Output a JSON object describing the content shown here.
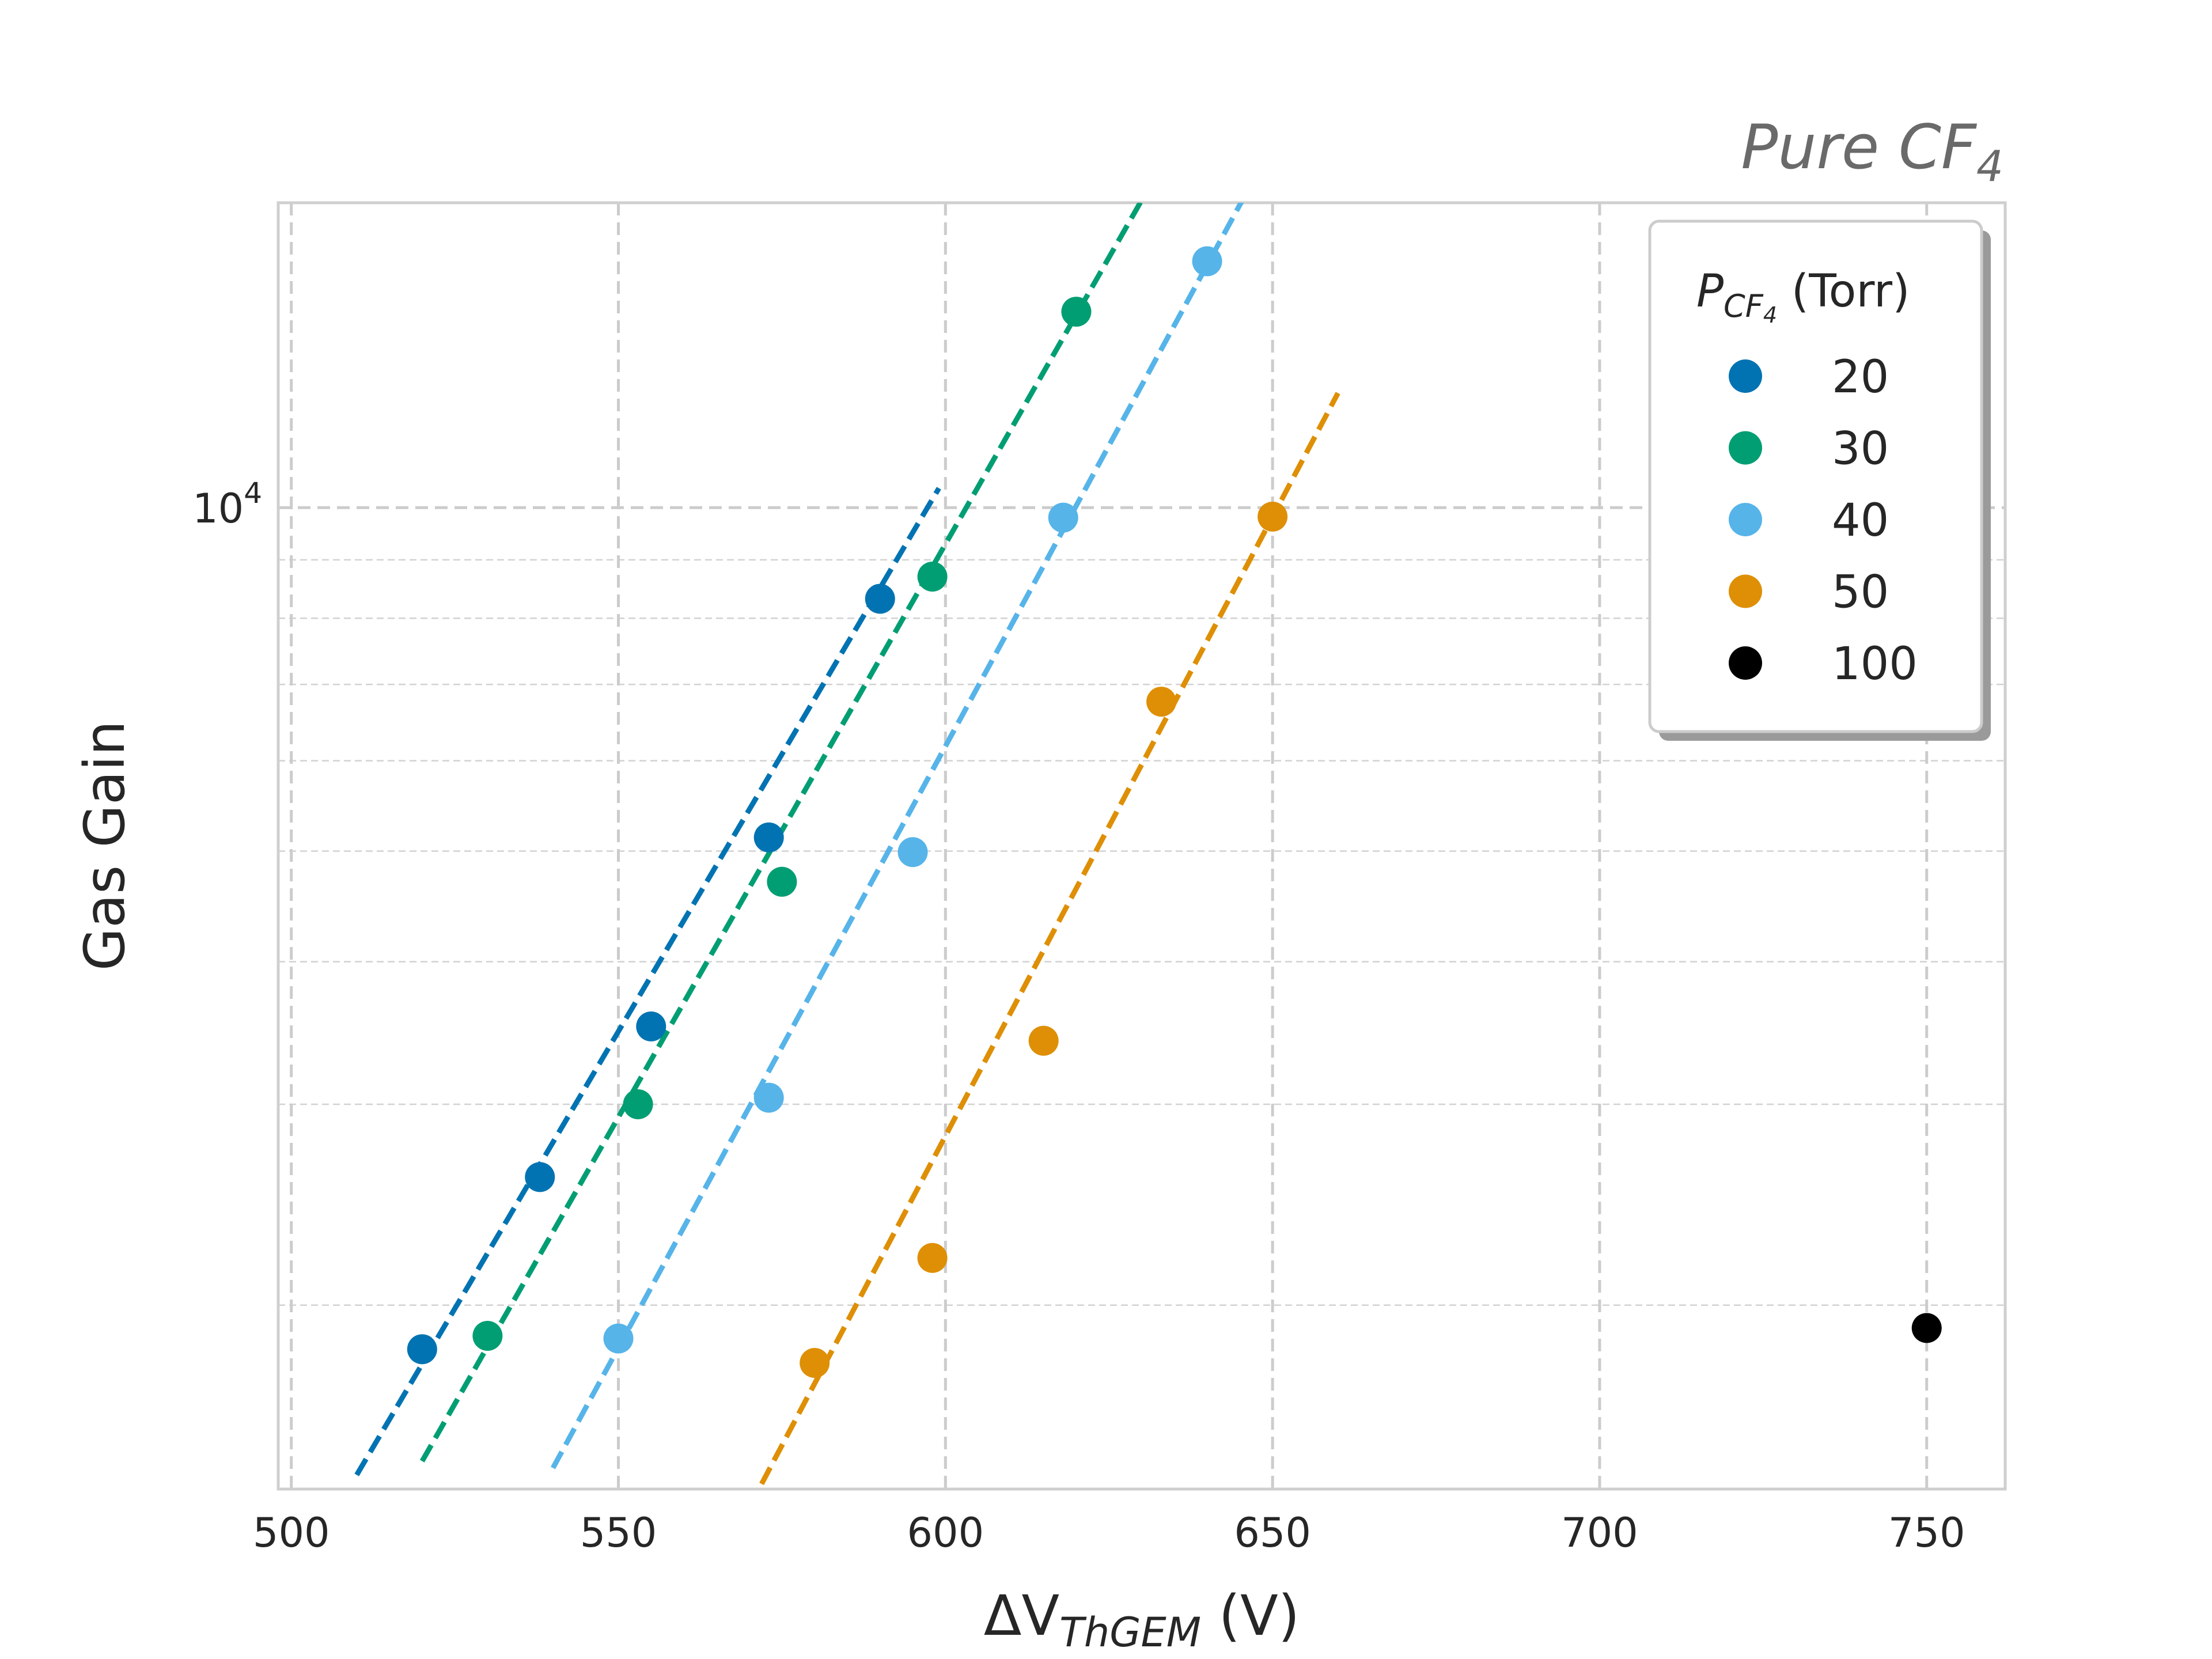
{
  "chart_data": {
    "type": "scatter",
    "title": "Pure CF",
    "title_subscript": "4",
    "xlabel_prefix": "ΔV",
    "xlabel_subscript": "ThGEM",
    "xlabel_suffix": " (V)",
    "ylabel": "Gas Gain",
    "yscale": "log",
    "xlim": [
      498,
      762
    ],
    "ylim": [
      1380,
      18500
    ],
    "xticks": [
      500,
      550,
      600,
      650,
      700,
      750
    ],
    "yticks_major": [
      10000
    ],
    "ytick_labels": [
      {
        "base": "10",
        "exp": "4"
      }
    ],
    "yminor": [
      2000,
      3000,
      4000,
      5000,
      6000,
      7000,
      8000,
      9000
    ],
    "grid": true,
    "legend": {
      "title_var": "P",
      "title_sub": "CF",
      "title_subsub": "4",
      "title_unit": " (Torr)",
      "placement": "top-right"
    },
    "series": [
      {
        "name": "20",
        "color": "#0173b2",
        "x": [
          520,
          538,
          555,
          573,
          590
        ],
        "y": [
          1830,
          2590,
          3510,
          5140,
          8320
        ],
        "fit_x": [
          510,
          599
        ],
        "fit_y": [
          1420,
          10400
        ]
      },
      {
        "name": "30",
        "color": "#029e73",
        "x": [
          530,
          553,
          575,
          598,
          620
        ],
        "y": [
          1880,
          3000,
          4700,
          8700,
          14850
        ],
        "fit_x": [
          520,
          630
        ],
        "fit_y": [
          1460,
          18600
        ]
      },
      {
        "name": "40",
        "color": "#56b4e9",
        "x": [
          550,
          573,
          595,
          618,
          640
        ],
        "y": [
          1870,
          3040,
          4990,
          9800,
          16440
        ],
        "fit_x": [
          540,
          650
        ],
        "fit_y": [
          1440,
          20800
        ]
      },
      {
        "name": "50",
        "color": "#de8f05",
        "x": [
          580,
          598,
          615,
          633,
          650
        ],
        "y": [
          1780,
          2200,
          3410,
          6760,
          9820
        ],
        "fit_x": [
          570,
          660
        ],
        "fit_y": [
          1330,
          12600
        ]
      },
      {
        "name": "100",
        "color": "#000000",
        "x": [
          750
        ],
        "y": [
          1910
        ]
      }
    ]
  }
}
